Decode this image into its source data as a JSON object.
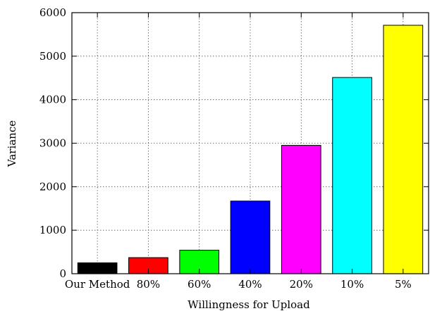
{
  "chart_data": {
    "type": "bar",
    "title": "",
    "xlabel": "Willingness for Upload",
    "ylabel": "Variance",
    "ylim": [
      0,
      6000
    ],
    "yticks": [
      0,
      1000,
      2000,
      3000,
      4000,
      5000,
      6000
    ],
    "grid": true,
    "categories": [
      "Our Method",
      "80%",
      "60%",
      "40%",
      "20%",
      "10%",
      "5%"
    ],
    "values": [
      250,
      370,
      540,
      1670,
      2950,
      4510,
      5710
    ],
    "colors": [
      "#000000",
      "#ff0000",
      "#00ff00",
      "#0000ff",
      "#ff00ff",
      "#00ffff",
      "#ffff00"
    ]
  }
}
